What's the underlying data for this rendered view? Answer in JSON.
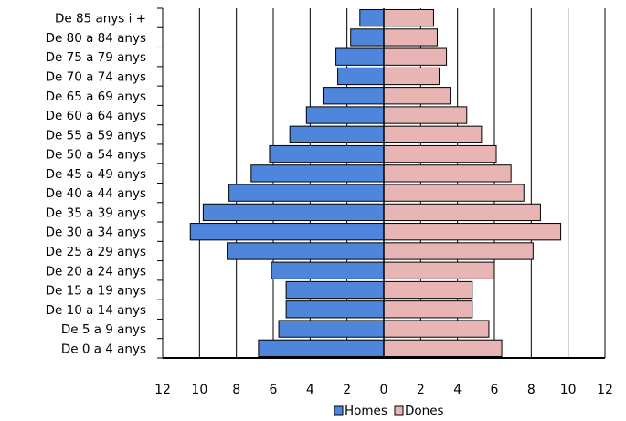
{
  "chart_data": {
    "type": "bar",
    "orientation": "horizontal",
    "subtype": "population-pyramid",
    "categories": [
      "De 85 anys i +",
      "De 80 a 84 anys",
      "De 75 a 79 anys",
      "De 70 a 74 anys",
      "De 65 a 69 anys",
      "De 60 a 64 anys",
      "De 55 a 59 anys",
      "De 50 a 54 anys",
      "De 45 a 49 anys",
      "De 40 a 44 anys",
      "De 35 a 39 anys",
      "De 30 a 34 anys",
      "De 25 a 29 anys",
      "De 20 a 24 anys",
      "De 15 a 19 anys",
      "De 10 a 14 anys",
      "De 5 a 9 anys",
      "De 0 a 4 anys"
    ],
    "series": [
      {
        "name": "Homes",
        "side": "left",
        "color": "#4f86dc",
        "values": [
          1.3,
          1.8,
          2.6,
          2.5,
          3.3,
          4.2,
          5.1,
          6.2,
          7.2,
          8.4,
          9.8,
          10.5,
          8.5,
          6.1,
          5.3,
          5.3,
          5.7,
          6.8
        ]
      },
      {
        "name": "Dones",
        "side": "right",
        "color": "#e8b4b4",
        "values": [
          2.7,
          2.9,
          3.4,
          3.0,
          3.6,
          4.5,
          5.3,
          6.1,
          6.9,
          7.6,
          8.5,
          9.6,
          8.1,
          6.0,
          4.8,
          4.8,
          5.7,
          6.4
        ]
      }
    ],
    "x_ticks": [
      "12",
      "10",
      "8",
      "6",
      "4",
      "2",
      "0",
      "2",
      "4",
      "6",
      "8",
      "10",
      "12"
    ],
    "xlim": [
      -12,
      12
    ],
    "grid": "vertical",
    "legend": {
      "position": "bottom-center",
      "entries": [
        "Homes",
        "Dones"
      ]
    },
    "title": "",
    "xlabel": "",
    "ylabel": ""
  }
}
